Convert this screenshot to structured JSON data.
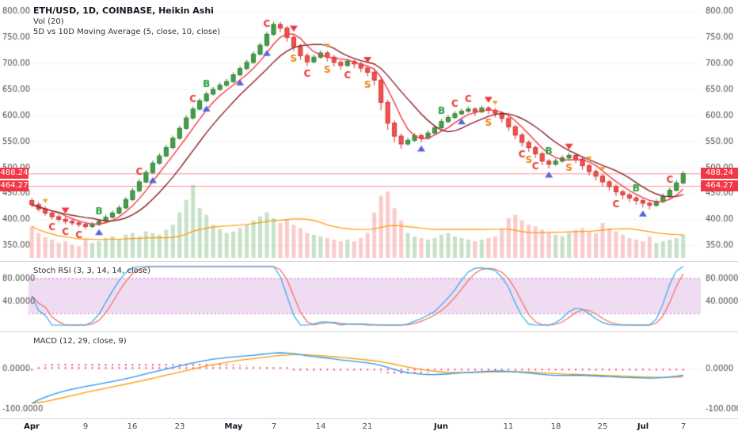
{
  "legend": {
    "symbol": "ETH/USD, 1D, COINBASE, Heikin Ashi",
    "vol": "Vol (20)",
    "ma": "5D vs 10D Moving Average (5, close, 10, close)",
    "stoch": "Stoch RSI (3, 3, 14, 14, close)",
    "macd": "MACD (12, 29, close, 9)"
  },
  "colors": {
    "up_body": "#43a047",
    "up_border": "#2e7d32",
    "down_body": "#ef5350",
    "down_border": "#d32f2f",
    "vol_up": "rgba(67,160,71,0.30)",
    "vol_down": "rgba(239,83,80,0.30)",
    "ma_fast": "#f23645",
    "ma_slow": "#8c1f28",
    "vol_ma": "#ff9800",
    "level_line": "#f23645",
    "badge_bg": "#f23645",
    "badge_text": "#ffffff",
    "marker_b": "#22a13a",
    "marker_c": "#e53935",
    "marker_s": "#e8820c",
    "tri_up": "#5565d6",
    "tri_down": "#f23645",
    "tri_down_small": "#f0a030",
    "stoch_k": "#33a6e8",
    "stoch_d": "#ef6a5a",
    "stoch_band": "rgba(156,39,176,0.16)",
    "stoch_band_edge": "#ab47bc",
    "macd_line": "#2196f3",
    "macd_signal": "#ff9800",
    "macd_hist": "#ec407a",
    "axis_text": "#4a4a4a",
    "grid": "rgba(0,0,0,0.05)",
    "pane_border": "#d6d6d6",
    "text_major": "#131722",
    "text_minor": "#4a4a4a"
  },
  "time_axis": {
    "ticks": [
      {
        "i": 0,
        "label": "Apr",
        "major": true
      },
      {
        "i": 8,
        "label": "9",
        "major": false
      },
      {
        "i": 15,
        "label": "16",
        "major": false
      },
      {
        "i": 22,
        "label": "23",
        "major": false
      },
      {
        "i": 30,
        "label": "May",
        "major": true
      },
      {
        "i": 36,
        "label": "7",
        "major": false
      },
      {
        "i": 43,
        "label": "14",
        "major": false
      },
      {
        "i": 50,
        "label": "21",
        "major": false
      },
      {
        "i": 61,
        "label": "Jun",
        "major": true
      },
      {
        "i": 71,
        "label": "11",
        "major": false
      },
      {
        "i": 78,
        "label": "18",
        "major": false
      },
      {
        "i": 85,
        "label": "25",
        "major": false
      },
      {
        "i": 91,
        "label": "Jul",
        "major": true
      },
      {
        "i": 97,
        "label": "7",
        "major": false
      }
    ]
  },
  "chart_data": [
    {
      "type": "candlestick",
      "title": "ETH/USD, 1D, COINBASE, Heikin Ashi",
      "style": "heikin-ashi",
      "ylim": [
        338,
        822
      ],
      "axis": {
        "min": 350,
        "max": 800,
        "step": 50
      },
      "last_values": [
        488.24,
        464.27
      ],
      "overlays": [
        {
          "name": "MA (5, close)"
        },
        {
          "name": "MA (10, close)"
        },
        {
          "name": "Vol MA (20)"
        }
      ],
      "candles": [
        [
          436,
          441,
          423,
          428,
          38
        ],
        [
          428,
          433,
          415,
          420,
          30
        ],
        [
          420,
          425,
          407,
          412,
          25
        ],
        [
          412,
          417,
          400,
          405,
          22
        ],
        [
          405,
          410,
          395,
          400,
          18
        ],
        [
          400,
          405,
          391,
          396,
          20
        ],
        [
          396,
          401,
          388,
          393,
          16
        ],
        [
          393,
          398,
          385,
          390,
          14
        ],
        [
          390,
          395,
          381,
          386,
          22
        ],
        [
          386,
          395,
          383,
          390,
          18
        ],
        [
          390,
          401,
          387,
          396,
          20
        ],
        [
          396,
          409,
          393,
          404,
          24
        ],
        [
          404,
          417,
          401,
          412,
          26
        ],
        [
          412,
          427,
          409,
          422,
          22
        ],
        [
          422,
          443,
          419,
          438,
          28
        ],
        [
          438,
          460,
          435,
          455,
          30
        ],
        [
          455,
          477,
          452,
          472,
          26
        ],
        [
          472,
          495,
          469,
          490,
          32
        ],
        [
          490,
          513,
          487,
          508,
          30
        ],
        [
          508,
          527,
          505,
          522,
          28
        ],
        [
          522,
          543,
          519,
          538,
          34
        ],
        [
          538,
          561,
          535,
          556,
          40
        ],
        [
          556,
          580,
          553,
          575,
          55
        ],
        [
          575,
          600,
          572,
          595,
          70
        ],
        [
          595,
          617,
          592,
          612,
          88
        ],
        [
          612,
          633,
          609,
          628,
          60
        ],
        [
          628,
          646,
          625,
          641,
          52
        ],
        [
          641,
          655,
          638,
          650,
          40
        ],
        [
          650,
          663,
          647,
          658,
          35
        ],
        [
          658,
          670,
          655,
          665,
          30
        ],
        [
          665,
          683,
          662,
          678,
          32
        ],
        [
          678,
          695,
          675,
          690,
          36
        ],
        [
          690,
          707,
          687,
          702,
          40
        ],
        [
          702,
          723,
          699,
          718,
          45
        ],
        [
          718,
          740,
          715,
          735,
          50
        ],
        [
          735,
          761,
          732,
          756,
          55
        ],
        [
          756,
          780,
          753,
          775,
          48
        ],
        [
          775,
          780,
          760,
          768,
          42
        ],
        [
          768,
          772,
          742,
          750,
          46
        ],
        [
          750,
          755,
          724,
          732,
          40
        ],
        [
          732,
          737,
          707,
          715,
          36
        ],
        [
          715,
          720,
          695,
          703,
          30
        ],
        [
          703,
          717,
          700,
          712,
          28
        ],
        [
          712,
          725,
          709,
          720,
          26
        ],
        [
          720,
          724,
          704,
          712,
          24
        ],
        [
          712,
          716,
          694,
          702,
          22
        ],
        [
          702,
          706,
          688,
          696,
          20
        ],
        [
          696,
          709,
          693,
          704,
          22
        ],
        [
          704,
          708,
          691,
          699,
          20
        ],
        [
          699,
          703,
          683,
          691,
          24
        ],
        [
          691,
          695,
          675,
          683,
          30
        ],
        [
          683,
          687,
          658,
          668,
          55
        ],
        [
          668,
          672,
          610,
          625,
          75
        ],
        [
          625,
          630,
          572,
          585,
          80
        ],
        [
          585,
          590,
          548,
          560,
          60
        ],
        [
          560,
          565,
          536,
          545,
          45
        ],
        [
          545,
          557,
          542,
          552,
          30
        ],
        [
          552,
          566,
          549,
          561,
          26
        ],
        [
          561,
          565,
          548,
          556,
          24
        ],
        [
          556,
          571,
          553,
          566,
          22
        ],
        [
          566,
          581,
          563,
          576,
          24
        ],
        [
          576,
          593,
          573,
          588,
          28
        ],
        [
          588,
          601,
          585,
          596,
          30
        ],
        [
          596,
          608,
          593,
          603,
          26
        ],
        [
          603,
          613,
          600,
          608,
          24
        ],
        [
          608,
          617,
          605,
          612,
          22
        ],
        [
          612,
          616,
          599,
          607,
          20
        ],
        [
          607,
          619,
          604,
          614,
          22
        ],
        [
          614,
          618,
          602,
          610,
          24
        ],
        [
          610,
          614,
          596,
          604,
          26
        ],
        [
          604,
          608,
          586,
          594,
          35
        ],
        [
          594,
          598,
          570,
          578,
          48
        ],
        [
          578,
          582,
          554,
          562,
          52
        ],
        [
          562,
          566,
          540,
          548,
          45
        ],
        [
          548,
          552,
          530,
          538,
          40
        ],
        [
          538,
          542,
          518,
          526,
          38
        ],
        [
          526,
          530,
          504,
          512,
          34
        ],
        [
          512,
          516,
          498,
          506,
          30
        ],
        [
          506,
          517,
          503,
          512,
          28
        ],
        [
          512,
          523,
          509,
          518,
          26
        ],
        [
          518,
          528,
          515,
          523,
          30
        ],
        [
          523,
          527,
          508,
          516,
          34
        ],
        [
          516,
          520,
          495,
          503,
          36
        ],
        [
          503,
          507,
          484,
          492,
          32
        ],
        [
          492,
          496,
          475,
          483,
          30
        ],
        [
          483,
          487,
          464,
          472,
          42
        ],
        [
          472,
          476,
          455,
          463,
          36
        ],
        [
          463,
          467,
          445,
          453,
          32
        ],
        [
          453,
          457,
          439,
          447,
          28
        ],
        [
          447,
          451,
          433,
          441,
          24
        ],
        [
          441,
          445,
          428,
          436,
          22
        ],
        [
          436,
          440,
          423,
          431,
          20
        ],
        [
          431,
          435,
          419,
          427,
          26
        ],
        [
          427,
          439,
          424,
          434,
          18
        ],
        [
          434,
          449,
          431,
          444,
          20
        ],
        [
          444,
          461,
          441,
          456,
          22
        ],
        [
          456,
          475,
          453,
          470,
          24
        ],
        [
          470,
          493,
          467,
          488,
          28
        ]
      ],
      "markers": [
        {
          "i": 2,
          "type": "triangle-down-small",
          "pos": "above"
        },
        {
          "i": 3,
          "type": "C",
          "pos": "below"
        },
        {
          "i": 5,
          "type": "triangle-down",
          "pos": "above"
        },
        {
          "i": 5,
          "type": "C",
          "pos": "below"
        },
        {
          "i": 7,
          "type": "C",
          "pos": "below"
        },
        {
          "i": 10,
          "type": "B",
          "pos": "above"
        },
        {
          "i": 10,
          "type": "triangle-up",
          "pos": "below"
        },
        {
          "i": 16,
          "type": "C",
          "pos": "above"
        },
        {
          "i": 18,
          "type": "triangle-up",
          "pos": "below"
        },
        {
          "i": 24,
          "type": "C",
          "pos": "above"
        },
        {
          "i": 26,
          "type": "B",
          "pos": "above"
        },
        {
          "i": 26,
          "type": "triangle-up",
          "pos": "below"
        },
        {
          "i": 31,
          "type": "triangle-up",
          "pos": "below"
        },
        {
          "i": 35,
          "type": "C",
          "pos": "above"
        },
        {
          "i": 35,
          "type": "triangle-up",
          "pos": "below"
        },
        {
          "i": 39,
          "type": "triangle-down",
          "pos": "above"
        },
        {
          "i": 39,
          "type": "S",
          "pos": "below"
        },
        {
          "i": 41,
          "type": "C",
          "pos": "below"
        },
        {
          "i": 44,
          "type": "triangle-down-small",
          "pos": "above"
        },
        {
          "i": 44,
          "type": "S",
          "pos": "below"
        },
        {
          "i": 47,
          "type": "C",
          "pos": "below"
        },
        {
          "i": 50,
          "type": "triangle-down",
          "pos": "above"
        },
        {
          "i": 50,
          "type": "S",
          "pos": "below"
        },
        {
          "i": 58,
          "type": "triangle-up",
          "pos": "below"
        },
        {
          "i": 61,
          "type": "B",
          "pos": "above"
        },
        {
          "i": 63,
          "type": "C",
          "pos": "above"
        },
        {
          "i": 64,
          "type": "triangle-up",
          "pos": "below"
        },
        {
          "i": 65,
          "type": "C",
          "pos": "above"
        },
        {
          "i": 68,
          "type": "triangle-down",
          "pos": "above"
        },
        {
          "i": 68,
          "type": "S",
          "pos": "below"
        },
        {
          "i": 69,
          "type": "triangle-down-small",
          "pos": "above"
        },
        {
          "i": 73,
          "type": "C",
          "pos": "below"
        },
        {
          "i": 74,
          "type": "S",
          "pos": "below"
        },
        {
          "i": 75,
          "type": "C",
          "pos": "below"
        },
        {
          "i": 77,
          "type": "B",
          "pos": "above"
        },
        {
          "i": 77,
          "type": "triangle-up",
          "pos": "below"
        },
        {
          "i": 80,
          "type": "triangle-down",
          "pos": "above"
        },
        {
          "i": 80,
          "type": "S",
          "pos": "below"
        },
        {
          "i": 83,
          "type": "triangle-down-small",
          "pos": "above"
        },
        {
          "i": 85,
          "type": "triangle-down-small",
          "pos": "above"
        },
        {
          "i": 87,
          "type": "C",
          "pos": "below"
        },
        {
          "i": 90,
          "type": "B",
          "pos": "above"
        },
        {
          "i": 91,
          "type": "triangle-up",
          "pos": "below"
        },
        {
          "i": 95,
          "type": "C",
          "pos": "above"
        }
      ]
    },
    {
      "type": "line",
      "title": "Stoch RSI (3, 3, 14, 14, close)",
      "ylim": [
        0,
        100
      ],
      "band": [
        20,
        80
      ],
      "axis_ticks": [
        80,
        40
      ],
      "params": {
        "k": 3,
        "d": 3,
        "rsi_length": 14,
        "stoch_length": 14,
        "source": "close"
      }
    },
    {
      "type": "line",
      "title": "MACD (12, 29, close, 9)",
      "ylim": [
        -107,
        75
      ],
      "axis_ticks": [
        0,
        -100
      ],
      "params": {
        "fast": 12,
        "slow": 29,
        "source": "close",
        "signal": 9
      }
    }
  ]
}
